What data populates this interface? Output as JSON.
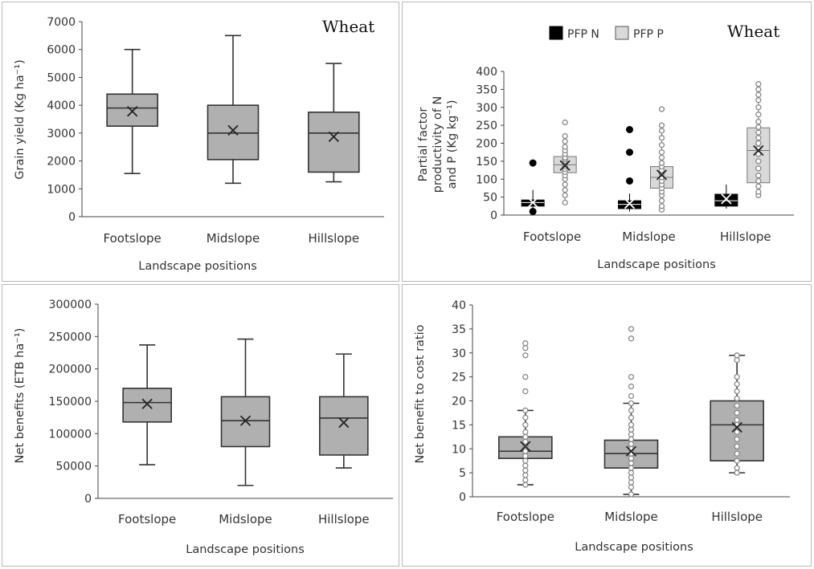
{
  "chart_data": [
    {
      "id": "grain_yield",
      "type": "box",
      "annotation": "Wheat",
      "xlabel": "Landscape positions",
      "ylabel": "Grain yield (Kg ha⁻¹)",
      "ylim": [
        0,
        7000
      ],
      "yticks": [
        0,
        1000,
        2000,
        3000,
        4000,
        5000,
        6000,
        7000
      ],
      "categories": [
        "Footslope",
        "Midslope",
        "Hillslope"
      ],
      "series": [
        {
          "name": "Grain yield",
          "color": "#b0b0b0",
          "boxes": [
            {
              "min": 1550,
              "q1": 3250,
              "median": 3900,
              "q3": 4400,
              "max": 6000,
              "mean": 3780,
              "outliers": []
            },
            {
              "min": 1200,
              "q1": 2050,
              "median": 3000,
              "q3": 4000,
              "max": 6500,
              "mean": 3100,
              "outliers": []
            },
            {
              "min": 1250,
              "q1": 1600,
              "median": 3000,
              "q3": 3750,
              "max": 5500,
              "mean": 2870,
              "outliers": []
            }
          ]
        }
      ]
    },
    {
      "id": "pfp",
      "type": "box",
      "annotation": "Wheat",
      "xlabel": "Landscape positions",
      "ylabel_lines": [
        "Partial factor",
        "productivity of N",
        "and P (Kg kg⁻¹)"
      ],
      "ylim": [
        0,
        400
      ],
      "yticks": [
        0,
        50,
        100,
        150,
        200,
        250,
        300,
        350,
        400
      ],
      "categories": [
        "Footslope",
        "Midslope",
        "Hillslope"
      ],
      "series": [
        {
          "name": "PFP N",
          "color": "#000000",
          "boxes": [
            {
              "min": 15,
              "q1": 25,
              "median": 35,
              "q3": 42,
              "max": 70,
              "mean": 35,
              "outliers": [
                10,
                145
              ]
            },
            {
              "min": 10,
              "q1": 18,
              "median": 30,
              "q3": 40,
              "max": 60,
              "mean": 32,
              "outliers": [
                95,
                175,
                238
              ]
            },
            {
              "min": 18,
              "q1": 25,
              "median": 40,
              "q3": 58,
              "max": 85,
              "mean": 45,
              "outliers": []
            }
          ]
        },
        {
          "name": "PFP P",
          "color": "#d9d9d9",
          "boxes": [
            {
              "min": 35,
              "q1": 118,
              "median": 140,
              "q3": 163,
              "max": 220,
              "mean": 138,
              "outliers": [
                258
              ],
              "points": [
                35,
                55,
                70,
                85,
                100,
                110,
                120,
                128,
                135,
                140,
                145,
                150,
                155,
                160,
                170,
                180,
                190,
                205,
                220,
                258
              ]
            },
            {
              "min": 15,
              "q1": 75,
              "median": 105,
              "q3": 135,
              "max": 250,
              "mean": 112,
              "outliers": [
                295
              ],
              "points": [
                15,
                25,
                40,
                55,
                65,
                75,
                85,
                95,
                105,
                115,
                125,
                135,
                145,
                160,
                175,
                195,
                215,
                235,
                250,
                295
              ]
            },
            {
              "min": 55,
              "q1": 90,
              "median": 180,
              "q3": 243,
              "max": 350,
              "mean": 180,
              "outliers": [
                365
              ],
              "points": [
                55,
                65,
                80,
                95,
                110,
                130,
                150,
                170,
                185,
                200,
                215,
                230,
                245,
                260,
                280,
                300,
                320,
                335,
                350,
                365
              ]
            }
          ]
        }
      ]
    },
    {
      "id": "net_benefits",
      "type": "box",
      "xlabel": "Landscape positions",
      "ylabel": "Net benefits (ETB ha⁻¹)",
      "ylim": [
        0,
        300000
      ],
      "yticks": [
        0,
        50000,
        100000,
        150000,
        200000,
        250000,
        300000
      ],
      "categories": [
        "Footslope",
        "Midslope",
        "Hillslope"
      ],
      "series": [
        {
          "name": "Net benefits",
          "color": "#b0b0b0",
          "boxes": [
            {
              "min": 52000,
              "q1": 118000,
              "median": 148000,
              "q3": 170000,
              "max": 237000,
              "mean": 146000,
              "outliers": []
            },
            {
              "min": 20000,
              "q1": 80000,
              "median": 120000,
              "q3": 157000,
              "max": 246000,
              "mean": 120000,
              "outliers": []
            },
            {
              "min": 47000,
              "q1": 67000,
              "median": 124000,
              "q3": 157000,
              "max": 223000,
              "mean": 117000,
              "outliers": []
            }
          ]
        }
      ]
    },
    {
      "id": "bc_ratio",
      "type": "box",
      "xlabel": "Landscape positions",
      "ylabel": "Net benefit to cost ratio",
      "ylim": [
        0,
        40
      ],
      "yticks": [
        0,
        5,
        10,
        15,
        20,
        25,
        30,
        35,
        40
      ],
      "categories": [
        "Footslope",
        "Midslope",
        "Hillslope"
      ],
      "series": [
        {
          "name": "Net benefit to cost ratio",
          "color": "#b0b0b0",
          "boxes": [
            {
              "min": 2.5,
              "q1": 8.0,
              "median": 9.5,
              "q3": 12.5,
              "max": 18.0,
              "mean": 10.5,
              "outliers": [
                22,
                25,
                29.5,
                31,
                32
              ],
              "points": [
                2.5,
                3.5,
                4.5,
                5.5,
                6.5,
                7.5,
                8.5,
                9.5,
                10.5,
                11.5,
                12.5,
                13.5,
                15,
                16.5,
                18,
                22,
                25,
                29.5,
                31,
                32
              ]
            },
            {
              "min": 0.5,
              "q1": 6.0,
              "median": 9.0,
              "q3": 11.8,
              "max": 19.5,
              "mean": 9.5,
              "outliers": [
                21,
                23,
                25,
                33,
                35
              ],
              "points": [
                0.5,
                2,
                3,
                4,
                5,
                6,
                7,
                8,
                9,
                10,
                11,
                12,
                13,
                14,
                15,
                16.5,
                18,
                19.5,
                21,
                23,
                25,
                33,
                35
              ]
            },
            {
              "min": 5.0,
              "q1": 7.5,
              "median": 15.0,
              "q3": 20.0,
              "max": 29.5,
              "mean": 14.5,
              "outliers": [],
              "points": [
                5,
                6,
                7.5,
                9,
                10.5,
                12,
                13.5,
                15,
                16,
                17.5,
                19,
                20.5,
                22,
                23.5,
                25,
                28.5,
                29.5
              ]
            }
          ]
        }
      ]
    }
  ]
}
